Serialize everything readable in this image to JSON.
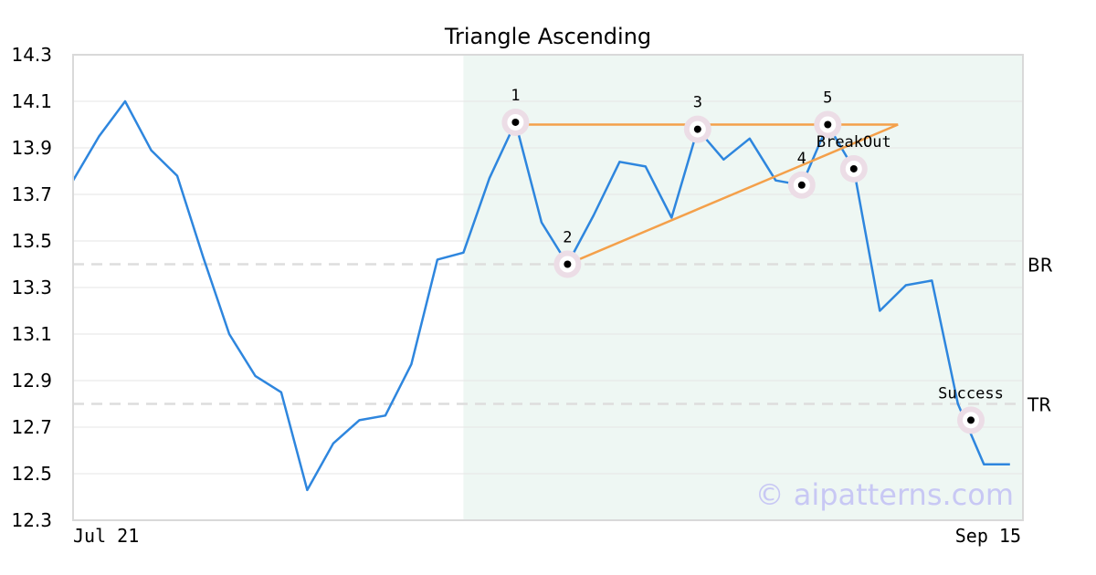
{
  "chart_data": {
    "type": "line",
    "title": "Triangle Ascending",
    "xlabel": "",
    "ylabel": "",
    "x_ticks": [
      {
        "index": 0,
        "label": "Jul 21"
      },
      {
        "index": 36.5,
        "label": "Sep 15"
      }
    ],
    "x_range": [
      0,
      36.5
    ],
    "ylim": [
      12.3,
      14.3
    ],
    "y_ticks": [
      "12.3",
      "12.5",
      "12.7",
      "12.9",
      "13.1",
      "13.3",
      "13.5",
      "13.7",
      "13.9",
      "14.1",
      "14.3"
    ],
    "grid": true,
    "series": [
      {
        "color": "#2e86de",
        "values": [
          13.76,
          13.95,
          14.1,
          13.89,
          13.78,
          13.43,
          13.1,
          12.92,
          12.85,
          12.43,
          12.63,
          12.73,
          12.75,
          12.97,
          13.42,
          13.45,
          13.77,
          14.01,
          13.58,
          13.4,
          13.61,
          13.84,
          13.82,
          13.6,
          13.98,
          13.85,
          13.94,
          13.76,
          13.74,
          14.0,
          13.81,
          13.2,
          13.31,
          13.33,
          12.8,
          12.54,
          12.54
        ]
      }
    ],
    "pattern_region": {
      "x_start": 15,
      "x_end": 36.5,
      "color": "#eef7f3"
    },
    "trend_lines": [
      {
        "name": "resistance",
        "from": [
          17,
          14.0
        ],
        "to": [
          31.7,
          14.0
        ],
        "color": "#f4a04a"
      },
      {
        "name": "support",
        "from": [
          19,
          13.4
        ],
        "to": [
          31.7,
          14.0
        ],
        "color": "#f4a04a"
      }
    ],
    "levels": [
      {
        "label": "BR",
        "value": 13.4
      },
      {
        "label": "TR",
        "value": 12.8
      }
    ],
    "points": [
      {
        "label": "1",
        "x": 17,
        "y": 14.01,
        "label_pos": "above"
      },
      {
        "label": "2",
        "x": 19,
        "y": 13.4,
        "label_pos": "above"
      },
      {
        "label": "3",
        "x": 24,
        "y": 13.98,
        "label_pos": "above"
      },
      {
        "label": "4",
        "x": 28,
        "y": 13.74,
        "label_pos": "above"
      },
      {
        "label": "5",
        "x": 29,
        "y": 14.0,
        "label_pos": "above"
      },
      {
        "label": "BreakOut",
        "x": 30,
        "y": 13.81,
        "label_pos": "above"
      },
      {
        "label": "Success",
        "x": 34.5,
        "y": 12.73,
        "label_pos": "above"
      }
    ],
    "watermark": "© aipatterns.com",
    "colors": {
      "line": "#2e86de",
      "trend": "#f4a04a",
      "marker_halo": "#ecdde6",
      "marker_dot": "#000000",
      "level_line": "#dddddd",
      "grid": "#e6e6e6",
      "axis": "#d9d9d9",
      "region": "#eef7f3",
      "watermark": "#c8c8f4"
    }
  }
}
